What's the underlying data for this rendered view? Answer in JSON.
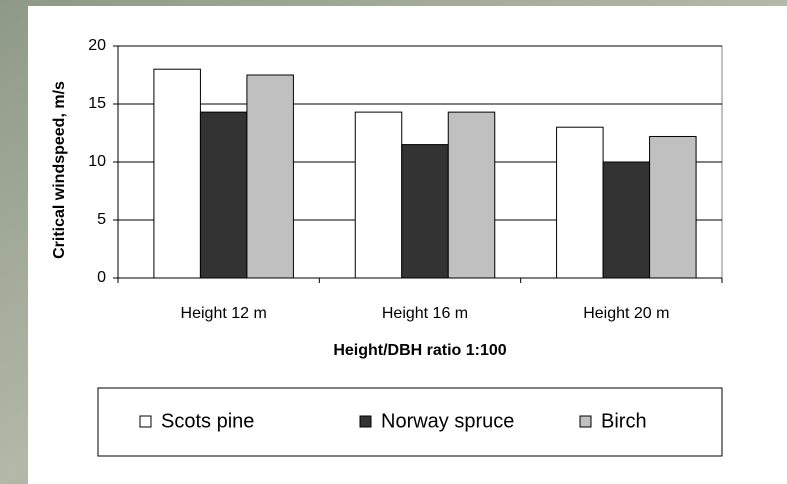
{
  "chart_data": {
    "type": "bar",
    "x_label": "Height/DBH ratio 1:100",
    "y_label": "Critical windspeed, m/s",
    "categories": [
      "Height 12 m",
      "Height 16 m",
      "Height 20 m"
    ],
    "series": [
      {
        "name": "Scots pine",
        "color": "#ffffff",
        "values": [
          18,
          14.3,
          13
        ]
      },
      {
        "name": "Norway spruce",
        "color": "#333333",
        "values": [
          14.3,
          11.5,
          10
        ]
      },
      {
        "name": "Birch",
        "color": "#c0c0c0",
        "values": [
          17.5,
          14.3,
          12.2
        ]
      }
    ],
    "ylim": [
      0,
      20
    ],
    "yticks": [
      0,
      5,
      10,
      15,
      20
    ],
    "grid": true,
    "legend": "bottom"
  }
}
